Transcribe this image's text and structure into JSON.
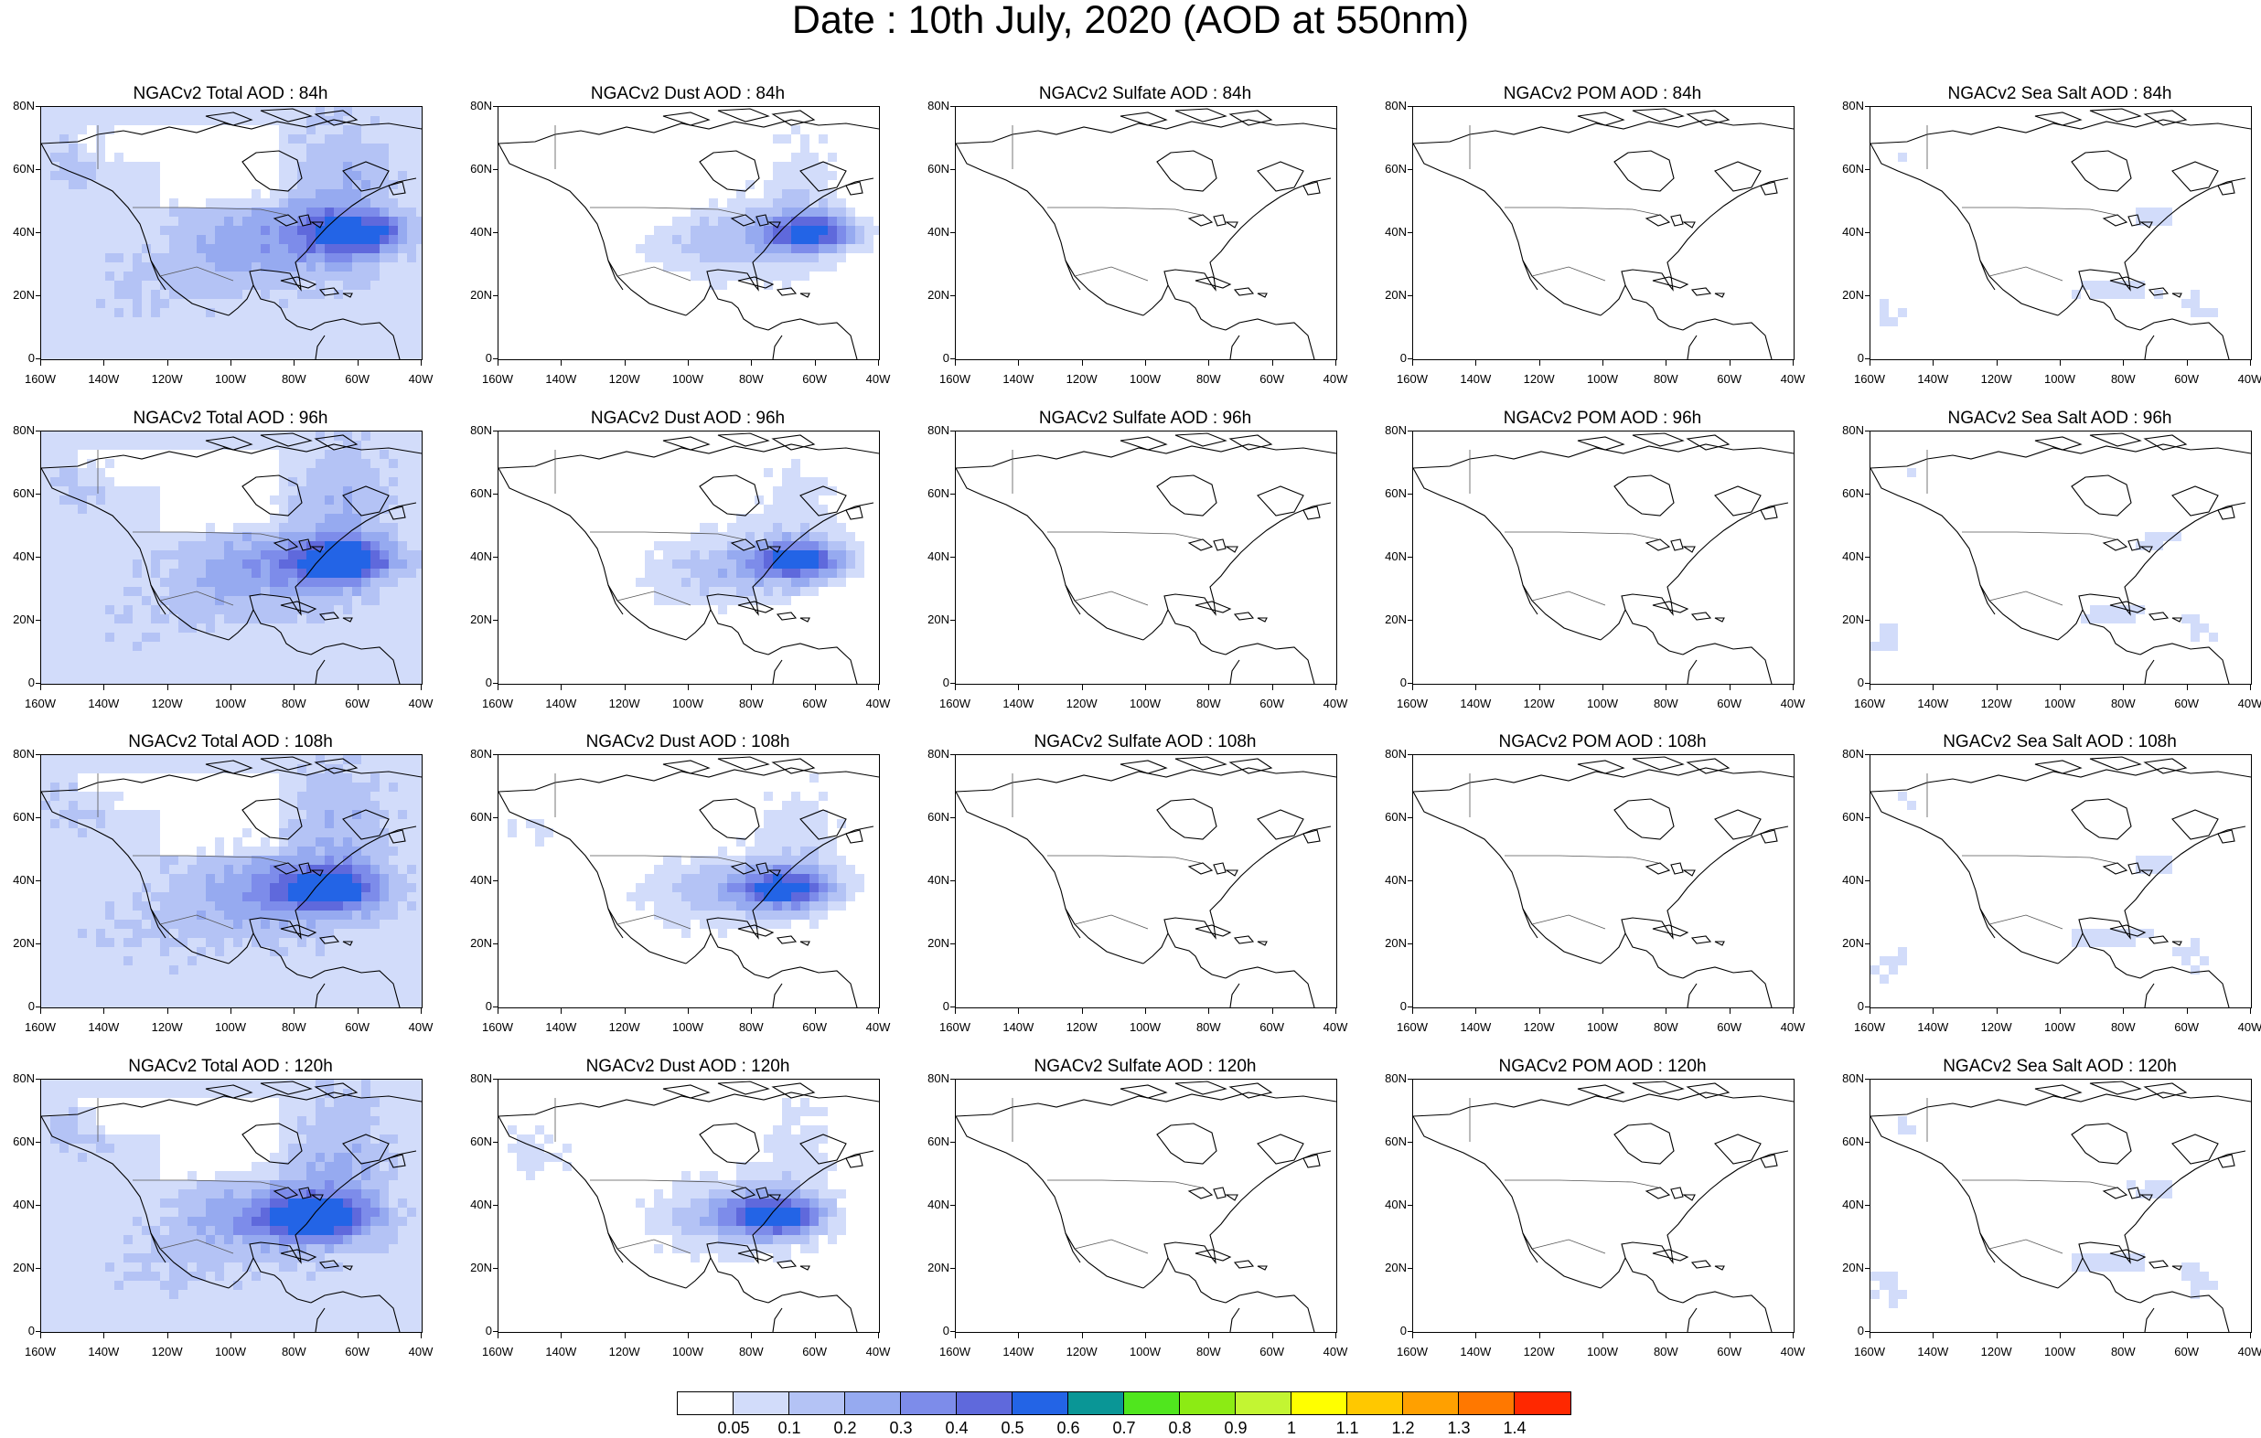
{
  "title": "Date : 10th July, 2020 (AOD at 550nm)",
  "x_ticks": [
    "160W",
    "140W",
    "120W",
    "100W",
    "80W",
    "60W",
    "40W"
  ],
  "y_ticks": [
    "80N",
    "60N",
    "40N",
    "20N",
    "0"
  ],
  "colorbar": {
    "labels": [
      "0.05",
      "0.1",
      "0.2",
      "0.3",
      "0.4",
      "0.5",
      "0.6",
      "0.7",
      "0.8",
      "0.9",
      "1",
      "1.1",
      "1.2",
      "1.3",
      "1.4"
    ],
    "colors": [
      "#ffffff",
      "#d2dcfa",
      "#b4c3f5",
      "#96aaf0",
      "#7d8cea",
      "#5f69dc",
      "#2364e6",
      "#0a9696",
      "#50e61e",
      "#8ceb14",
      "#c3f532",
      "#ffff00",
      "#ffc800",
      "#ffa000",
      "#ff7800",
      "#ff2800"
    ]
  },
  "panels": [
    {
      "title": "NGACv2 Total AOD : 84h",
      "type": "total"
    },
    {
      "title": "NGACv2 Dust AOD : 84h",
      "type": "dust"
    },
    {
      "title": "NGACv2 Sulfate AOD : 84h",
      "type": "sulfate"
    },
    {
      "title": "NGACv2 POM AOD : 84h",
      "type": "pom"
    },
    {
      "title": "NGACv2 Sea Salt AOD : 84h",
      "type": "seasalt"
    },
    {
      "title": "NGACv2 Total AOD : 96h",
      "type": "total"
    },
    {
      "title": "NGACv2 Dust AOD : 96h",
      "type": "dust"
    },
    {
      "title": "NGACv2 Sulfate AOD : 96h",
      "type": "sulfate"
    },
    {
      "title": "NGACv2 POM AOD : 96h",
      "type": "pom"
    },
    {
      "title": "NGACv2 Sea Salt AOD : 96h",
      "type": "seasalt"
    },
    {
      "title": "NGACv2 Total AOD : 108h",
      "type": "total"
    },
    {
      "title": "NGACv2 Dust AOD : 108h",
      "type": "dust"
    },
    {
      "title": "NGACv2 Sulfate AOD : 108h",
      "type": "sulfate"
    },
    {
      "title": "NGACv2 POM AOD : 108h",
      "type": "pom"
    },
    {
      "title": "NGACv2 Sea Salt AOD : 108h",
      "type": "seasalt"
    },
    {
      "title": "NGACv2 Total AOD : 120h",
      "type": "total"
    },
    {
      "title": "NGACv2 Dust AOD : 120h",
      "type": "dust"
    },
    {
      "title": "NGACv2 Sulfate AOD : 120h",
      "type": "sulfate"
    },
    {
      "title": "NGACv2 POM AOD : 120h",
      "type": "pom"
    },
    {
      "title": "NGACv2 Sea Salt  AOD : 120h",
      "type": "seasalt"
    }
  ]
}
